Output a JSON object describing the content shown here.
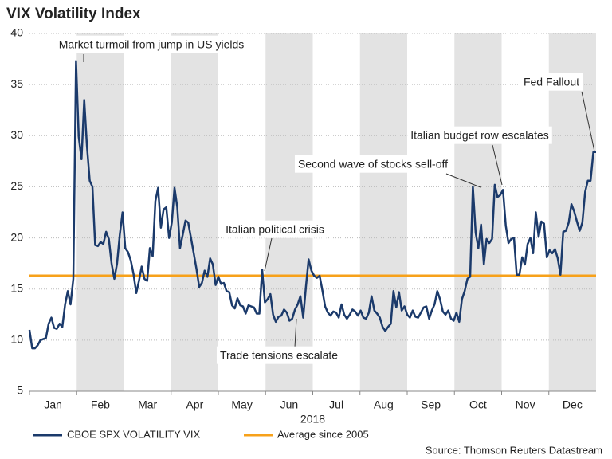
{
  "chart_data": {
    "type": "line",
    "title": "VIX Volatility Index",
    "xlabel": "2018",
    "months": [
      "Jan",
      "Feb",
      "Mar",
      "Apr",
      "May",
      "Jun",
      "Jul",
      "Aug",
      "Sep",
      "Oct",
      "Nov",
      "Dec"
    ],
    "ylim": [
      5,
      40
    ],
    "yticks": [
      5,
      10,
      15,
      20,
      25,
      30,
      35,
      40
    ],
    "grid": true,
    "series": [
      {
        "name": "CBOE SPX VOLATILITY VIX",
        "color": "#1b3a6b",
        "values": [
          11,
          9.2,
          9.2,
          9.5,
          10,
          10.1,
          10.2,
          11.6,
          12.2,
          11.2,
          11.1,
          11.6,
          11.3,
          13.5,
          14.8,
          13.5,
          16,
          37.3,
          29.9,
          27.7,
          33.5,
          29,
          25.6,
          25,
          19.3,
          19.2,
          19.6,
          19.4,
          20.6,
          19.9,
          17.5,
          16,
          17.5,
          20.3,
          22.5,
          19,
          18.6,
          17.8,
          16.5,
          14.6,
          15.8,
          17.2,
          16,
          15.8,
          19,
          18.2,
          23.6,
          24.9,
          21,
          22.8,
          23,
          20,
          21.5,
          24.9,
          23,
          19,
          20.3,
          21.7,
          21.5,
          20,
          18.5,
          17,
          15.2,
          15.6,
          16.8,
          16.2,
          18,
          17.4,
          15.4,
          16.2,
          15.5,
          15.6,
          14.8,
          14.7,
          13.4,
          13.1,
          14.1,
          13.4,
          13.3,
          12.6,
          13.4,
          13.3,
          13.2,
          12.6,
          12.6,
          16.9,
          13.7,
          14,
          14.5,
          12.5,
          11.8,
          12.3,
          12.4,
          13,
          12.7,
          11.9,
          12.1,
          13,
          13.5,
          14.3,
          12.2,
          15.2,
          17.9,
          16.8,
          16.3,
          16.1,
          16.3,
          14.9,
          13.3,
          12.7,
          12.4,
          12.8,
          12.7,
          12.2,
          13.5,
          12.5,
          12.1,
          12.5,
          13,
          12.8,
          12.4,
          12.9,
          12.2,
          12.1,
          12.7,
          14.3,
          12.9,
          12.6,
          12.2,
          11.3,
          10.9,
          11.3,
          11.6,
          14.8,
          13.2,
          14.7,
          12.9,
          13.3,
          12.5,
          12.2,
          12.9,
          12.3,
          12.2,
          12.7,
          13.2,
          13.3,
          12.1,
          12.9,
          13.5,
          14.8,
          14,
          12.8,
          12.5,
          12.9,
          12.1,
          11.9,
          12.7,
          11.8,
          14,
          14.8,
          16,
          16.2,
          25,
          20.5,
          19,
          21.3,
          17.4,
          19.9,
          19.5,
          19.9,
          25.2,
          24,
          24.2,
          24.7,
          21.2,
          19.5,
          19.9,
          20,
          16.4,
          16.4,
          18.1,
          17.4,
          19.4,
          20,
          18.5,
          22.5,
          20.1,
          21.6,
          21.4,
          18.1,
          18.8,
          18.5,
          18.9,
          18,
          16.4,
          20.6,
          20.7,
          21.5,
          23.3,
          22.6,
          21.6,
          20.7,
          21.5,
          24.5,
          25.6,
          25.6,
          28.4,
          28.4
        ]
      }
    ],
    "reference_line": {
      "name": "Average since 2005",
      "color": "#f7a11a",
      "value": 16.3
    },
    "annotations": [
      "Market turmoil from jump in US yields",
      "Italian political crisis",
      "Trade tensions escalate",
      "Second wave of stocks sell-off",
      "Italian budget row escalates",
      "Fed Fallout"
    ],
    "source": "Source: Thomson Reuters Datastream"
  }
}
